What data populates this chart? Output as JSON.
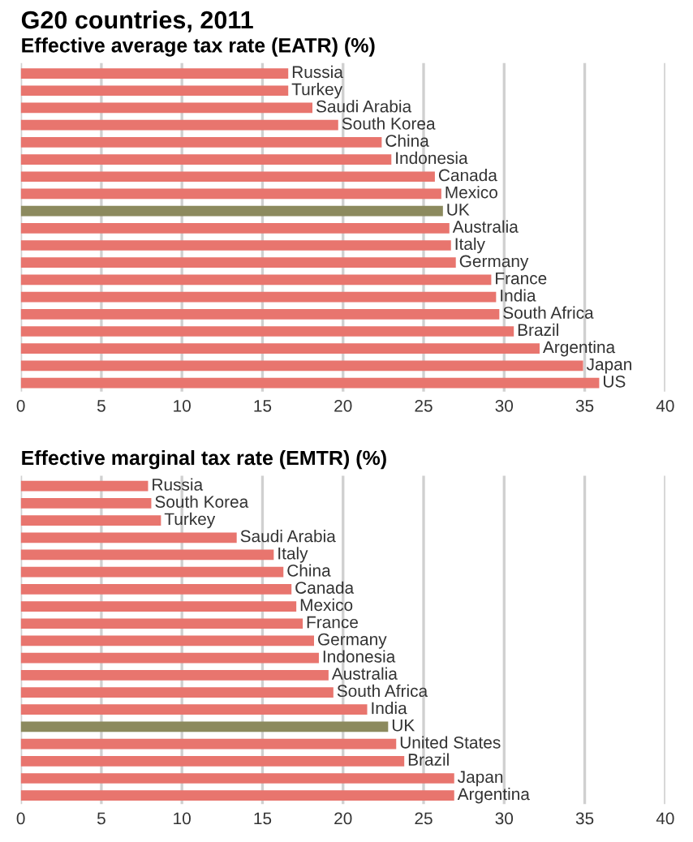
{
  "chart_data": [
    {
      "type": "bar",
      "orientation": "horizontal",
      "title": "G20 countries, 2011",
      "subtitle": "Effective average tax rate (EATR) (%)",
      "categories": [
        "Russia",
        "Turkey",
        "Saudi Arabia",
        "South Korea",
        "China",
        "Indonesia",
        "Canada",
        "Mexico",
        "UK",
        "Australia",
        "Italy",
        "Germany",
        "France",
        "India",
        "South Africa",
        "Brazil",
        "Argentina",
        "Japan",
        "US"
      ],
      "values": [
        16.6,
        16.6,
        18.1,
        19.7,
        22.4,
        23.0,
        25.7,
        26.1,
        26.2,
        26.6,
        26.7,
        27.0,
        29.2,
        29.5,
        29.7,
        30.6,
        32.2,
        34.9,
        35.9
      ],
      "colors": [
        "#e8756e",
        "#e8756e",
        "#e8756e",
        "#e8756e",
        "#e8756e",
        "#e8756e",
        "#e8756e",
        "#e8756e",
        "#8c8a5e",
        "#e8756e",
        "#e8756e",
        "#e8756e",
        "#e8756e",
        "#e8756e",
        "#e8756e",
        "#e8756e",
        "#e8756e",
        "#e8756e",
        "#e8756e"
      ],
      "xlim": [
        0,
        40
      ],
      "xticks": [
        0,
        5,
        10,
        15,
        20,
        25,
        30,
        35,
        40
      ],
      "grid": "x",
      "legend": false
    },
    {
      "type": "bar",
      "orientation": "horizontal",
      "subtitle": "Effective marginal tax rate (EMTR) (%)",
      "categories": [
        "Russia",
        "South Korea",
        "Turkey",
        "Saudi Arabia",
        "Italy",
        "China",
        "Canada",
        "Mexico",
        "France",
        "Germany",
        "Indonesia",
        "Australia",
        "South Africa",
        "India",
        "UK",
        "United States",
        "Brazil",
        "Japan",
        "Argentina"
      ],
      "values": [
        7.9,
        8.1,
        8.7,
        13.4,
        15.7,
        16.3,
        16.8,
        17.1,
        17.5,
        18.2,
        18.5,
        19.1,
        19.4,
        21.5,
        22.8,
        23.3,
        23.8,
        26.9,
        26.9
      ],
      "colors": [
        "#e8756e",
        "#e8756e",
        "#e8756e",
        "#e8756e",
        "#e8756e",
        "#e8756e",
        "#e8756e",
        "#e8756e",
        "#e8756e",
        "#e8756e",
        "#e8756e",
        "#e8756e",
        "#e8756e",
        "#e8756e",
        "#8c8a5e",
        "#e8756e",
        "#e8756e",
        "#e8756e",
        "#e8756e"
      ],
      "xlim": [
        0,
        40
      ],
      "xticks": [
        0,
        5,
        10,
        15,
        20,
        25,
        30,
        35,
        40
      ],
      "grid": "x",
      "legend": false
    }
  ]
}
